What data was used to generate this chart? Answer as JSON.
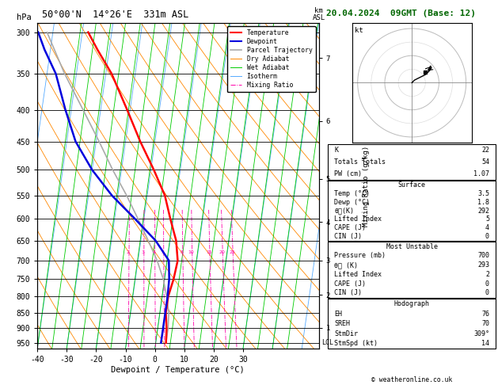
{
  "title_left": "50°00'N  14°26'E  331m ASL",
  "title_right": "20.04.2024  09GMT (Base: 12)",
  "xlabel": "Dewpoint / Temperature (°C)",
  "bg_color": "#ffffff",
  "plot_bg": "#ffffff",
  "pressure_ticks": [
    300,
    350,
    400,
    450,
    500,
    550,
    600,
    650,
    700,
    750,
    800,
    850,
    900,
    950
  ],
  "temp_ticks": [
    -40,
    -30,
    -20,
    -10,
    0,
    10,
    20,
    30
  ],
  "isotherm_color": "#55aaff",
  "dry_adiabat_color": "#ff8800",
  "wet_adiabat_color": "#00cc00",
  "mixing_ratio_color": "#ff00aa",
  "parcel_color": "#aaaaaa",
  "temp_profile_color": "#ff0000",
  "dewp_profile_color": "#0000dd",
  "skew_factor": 30.0,
  "P_ref": 1000.0,
  "Pmin": 290.0,
  "Pmax": 970.0,
  "km_asl_ticks": [
    1,
    2,
    3,
    4,
    5,
    6,
    7
  ],
  "km_asl_pressures": [
    898,
    795,
    700,
    607,
    517,
    417,
    330
  ],
  "mixing_ratios": [
    2,
    3,
    4,
    5,
    8,
    10,
    15,
    20,
    25
  ],
  "temperature_profile": {
    "pressure": [
      300,
      320,
      350,
      400,
      450,
      500,
      550,
      600,
      650,
      700,
      750,
      800,
      850,
      900,
      950
    ],
    "temp": [
      -38,
      -34,
      -28,
      -21,
      -15,
      -9,
      -4,
      -1,
      2,
      3.5,
      3,
      2,
      2,
      3,
      3.5
    ]
  },
  "dewpoint_profile": {
    "pressure": [
      300,
      320,
      350,
      400,
      450,
      500,
      550,
      600,
      650,
      700,
      750,
      800,
      850,
      900,
      950
    ],
    "dewp": [
      -55,
      -52,
      -47,
      -42,
      -37,
      -30,
      -22,
      -13,
      -5,
      0.5,
      1.5,
      1.8,
      1.8,
      1.8,
      1.8
    ]
  },
  "parcel_profile": {
    "pressure": [
      950,
      900,
      850,
      800,
      750,
      700,
      650,
      600,
      550,
      500,
      450,
      400,
      350,
      300
    ],
    "temp": [
      3.5,
      3.5,
      3.0,
      1.5,
      -0.5,
      -3.5,
      -7.5,
      -12,
      -17,
      -23,
      -29,
      -36,
      -44,
      -52
    ]
  },
  "legend_items": [
    {
      "label": "Temperature",
      "color": "#ff0000",
      "lw": 1.5,
      "ls": "-"
    },
    {
      "label": "Dewpoint",
      "color": "#0000dd",
      "lw": 1.5,
      "ls": "-"
    },
    {
      "label": "Parcel Trajectory",
      "color": "#aaaaaa",
      "lw": 1.2,
      "ls": "-"
    },
    {
      "label": "Dry Adiabat",
      "color": "#ff8800",
      "lw": 0.7,
      "ls": "-"
    },
    {
      "label": "Wet Adiabat",
      "color": "#00cc00",
      "lw": 0.7,
      "ls": "-"
    },
    {
      "label": "Isotherm",
      "color": "#55aaff",
      "lw": 0.7,
      "ls": "-"
    },
    {
      "label": "Mixing Ratio",
      "color": "#ff00aa",
      "lw": 0.7,
      "ls": "-."
    }
  ],
  "stats": {
    "K": "22",
    "Totals Totals": "54",
    "PW (cm)": "1.07",
    "surf_temp": "3.5",
    "surf_dewp": "1.8",
    "surf_thetae": "292",
    "surf_li": "5",
    "surf_cape": "4",
    "surf_cin": "0",
    "mu_pres": "700",
    "mu_thetae": "293",
    "mu_li": "2",
    "mu_cape": "0",
    "mu_cin": "0",
    "hodo_eh": "76",
    "hodo_sreh": "70",
    "hodo_stmdir": "309°",
    "hodo_stmspd": "14"
  }
}
